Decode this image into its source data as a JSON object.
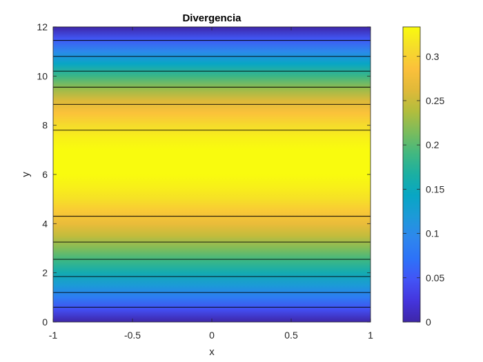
{
  "chart_data": {
    "type": "heatmap",
    "title": "Divergencia",
    "xlabel": "x",
    "ylabel": "y",
    "xlim": [
      -1,
      1
    ],
    "ylim": [
      0,
      12
    ],
    "x_ticks": [
      "-1",
      "-0.5",
      "0",
      "0.5",
      "1"
    ],
    "y_ticks": [
      "0",
      "2",
      "4",
      "6",
      "8",
      "10",
      "12"
    ],
    "colorbar": {
      "limits": [
        0,
        0.3333
      ],
      "ticks": [
        "0",
        "0.05",
        "0.1",
        "0.15",
        "0.2",
        "0.25",
        "0.3"
      ],
      "colormap": "parula"
    },
    "field": "divergence depends only on y; constant along x",
    "profile": {
      "y": [
        0,
        0.5,
        1,
        1.5,
        2,
        2.5,
        3,
        3.5,
        4,
        4.5,
        5,
        5.5,
        6,
        6.5,
        7,
        7.5,
        8,
        8.5,
        9,
        9.5,
        10,
        10.5,
        11,
        11.5,
        12
      ],
      "value": [
        0.0,
        0.0425,
        0.0833,
        0.1215,
        0.1562,
        0.1868,
        0.2167,
        0.2465,
        0.2705,
        0.2935,
        0.3125,
        0.3245,
        0.3333,
        0.3333,
        0.3333,
        0.3245,
        0.3083,
        0.287,
        0.26,
        0.226,
        0.186,
        0.143,
        0.098,
        0.051,
        0.0
      ]
    },
    "contour_levels_y": [
      0.6,
      1.2,
      1.85,
      2.55,
      3.25,
      4.3,
      7.8,
      8.85,
      9.55,
      10.2,
      10.8,
      11.45
    ],
    "grid": false,
    "legend": "none"
  },
  "colors": {
    "parula": [
      "#3e26a8",
      "#4435dd",
      "#4354f6",
      "#2d72f8",
      "#2e87ed",
      "#1d9ad8",
      "#08a6c4",
      "#1bafa2",
      "#42b880",
      "#7bbc5c",
      "#b2bd3d",
      "#e0b939",
      "#fbc03b",
      "#f5dc2b",
      "#f9fb0e"
    ],
    "axis": "#262626",
    "contour": "#000000"
  }
}
